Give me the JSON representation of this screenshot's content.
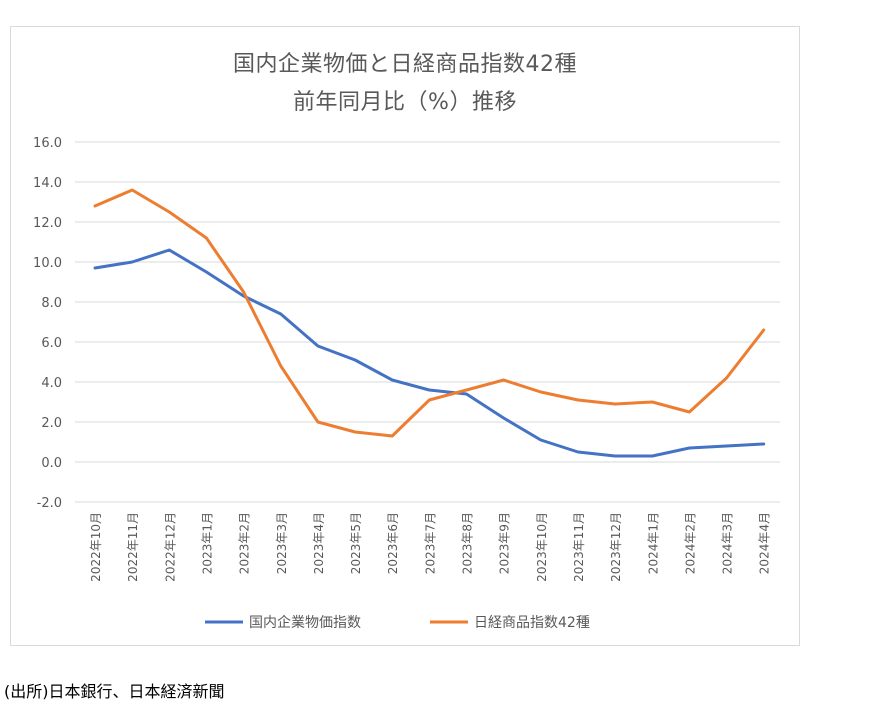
{
  "source_note": "(出所)日本銀行、日本経済新聞",
  "colors": {
    "series1": "#4472C4",
    "series2": "#ED7D31",
    "grid": "#d9d9d9",
    "text": "#595959"
  },
  "chart_data": {
    "type": "line",
    "title": "国内企業物価と日経商品指数42種",
    "subtitle": "前年同月比（%）推移",
    "xlabel": "",
    "ylabel": "",
    "ylim": [
      -2.0,
      16.0
    ],
    "yticks": [
      "16.0",
      "14.0",
      "12.0",
      "10.0",
      "8.0",
      "6.0",
      "4.0",
      "2.0",
      "0.0",
      "-2.0"
    ],
    "ytick_values": [
      16,
      14,
      12,
      10,
      8,
      6,
      4,
      2,
      0,
      -2
    ],
    "grid": true,
    "legend_position": "bottom",
    "categories": [
      "2022年10月",
      "2022年11月",
      "2022年12月",
      "2023年1月",
      "2023年2月",
      "2023年3月",
      "2023年4月",
      "2023年5月",
      "2023年6月",
      "2023年7月",
      "2023年8月",
      "2023年9月",
      "2023年10月",
      "2023年11月",
      "2023年12月",
      "2024年1月",
      "2024年2月",
      "2024年3月",
      "2024年4月"
    ],
    "series": [
      {
        "name": "国内企業物価指数",
        "color": "#4472C4",
        "values": [
          9.7,
          10.0,
          10.6,
          9.5,
          8.3,
          7.4,
          5.8,
          5.1,
          4.1,
          3.6,
          3.4,
          2.2,
          1.1,
          0.5,
          0.3,
          0.3,
          0.7,
          0.8,
          0.9
        ]
      },
      {
        "name": "日経商品指数42種",
        "color": "#ED7D31",
        "values": [
          12.8,
          13.6,
          12.5,
          11.2,
          8.5,
          4.8,
          2.0,
          1.5,
          1.3,
          3.1,
          3.6,
          4.1,
          3.5,
          3.1,
          2.9,
          3.0,
          2.5,
          4.2,
          6.6
        ]
      }
    ]
  }
}
